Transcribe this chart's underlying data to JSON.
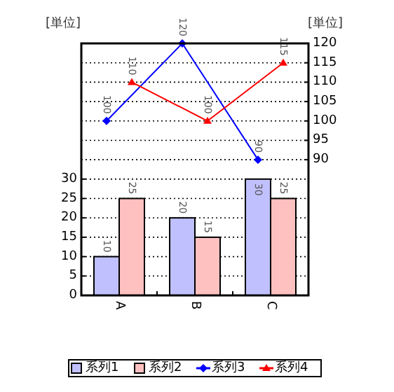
{
  "chart_data": {
    "type": "bar",
    "ylabel": "[単位]",
    "y2label": "[単位]",
    "categories": [
      "A",
      "B",
      "C"
    ],
    "series": [
      {
        "name": "系列1",
        "color": "#c0c0ff",
        "values": [
          10,
          20,
          30
        ]
      },
      {
        "name": "系列2",
        "color": "#ffc0c0",
        "values": [
          25,
          15,
          25
        ]
      },
      {
        "name": "系列3",
        "type": "line",
        "axis": "y2",
        "color": "#0000ff",
        "marker": "diamond",
        "values": [
          100,
          120,
          90
        ]
      },
      {
        "name": "系列4",
        "type": "line",
        "axis": "y2",
        "color": "#ff0000",
        "marker": "triangle",
        "values": [
          110,
          100,
          115
        ]
      }
    ],
    "ylim": [
      0,
      65
    ],
    "yticks": [
      0,
      5,
      10,
      15,
      20,
      25,
      30
    ],
    "y2lim": [
      55,
      120
    ],
    "y2ticks": [
      90,
      95,
      100,
      105,
      110,
      115,
      120
    ],
    "grid": "y",
    "data_labels": true,
    "legend": "bottom"
  }
}
